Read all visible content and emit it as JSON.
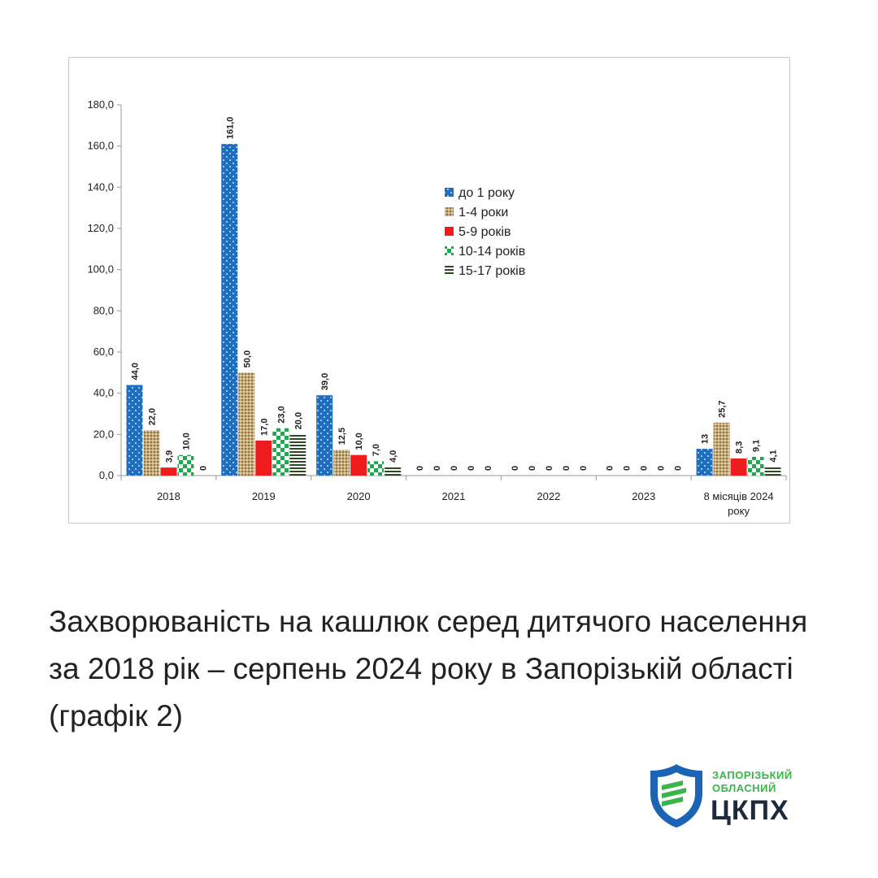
{
  "chart_data": {
    "type": "bar",
    "categories": [
      "2018",
      "2019",
      "2020",
      "2021",
      "2022",
      "2023",
      "8  місяців 2024 року"
    ],
    "series": [
      {
        "name": "до 1 року",
        "values": [
          44.0,
          161.0,
          39.0,
          0,
          0,
          0,
          13
        ],
        "labels": [
          "44,0",
          "161,0",
          "39,0",
          "0",
          "0",
          "0",
          "13"
        ],
        "color": "#1f6fc0"
      },
      {
        "name": "1-4 роки",
        "values": [
          22.0,
          50.0,
          12.5,
          0,
          0,
          0,
          25.7
        ],
        "labels": [
          "22,0",
          "50,0",
          "12,5",
          "0",
          "0",
          "0",
          "25,7"
        ],
        "color": "#b89d6b"
      },
      {
        "name": "5-9 років",
        "values": [
          3.9,
          17.0,
          10.0,
          0,
          0,
          0,
          8.3
        ],
        "labels": [
          "3,9",
          "17,0",
          "10,0",
          "0",
          "0",
          "0",
          "8,3"
        ],
        "color": "#ee1c1c"
      },
      {
        "name": "10-14 років",
        "values": [
          10.0,
          23.0,
          7.0,
          0,
          0,
          0,
          9.1
        ],
        "labels": [
          "10,0",
          "23,0",
          "7,0",
          "0",
          "0",
          "0",
          "9,1"
        ],
        "color": "#1fa84f"
      },
      {
        "name": "15-17 років",
        "values": [
          0,
          20.0,
          4.0,
          0,
          0,
          0,
          4.1
        ],
        "labels": [
          "0",
          "20,0",
          "4,0",
          "0",
          "0",
          "0",
          "4,1"
        ],
        "color": "#2e4a22"
      }
    ],
    "ylim": [
      0,
      180
    ],
    "yticks": [
      "0,0",
      "20,0",
      "40,0",
      "60,0",
      "80,0",
      "100,0",
      "120,0",
      "140,0",
      "160,0",
      "180,0"
    ],
    "legend_position": "top-right",
    "grid": false
  },
  "caption": "Захворюваність на кашлюк серед дитячого населення за 2018  рік – серпень 2024 року в Запорізькій області (графік 2)",
  "logo": {
    "line1": "ЗАПОРІЗЬКИЙ",
    "line2": "ОБЛАСНИЙ",
    "line3": "ЦКПХ"
  }
}
